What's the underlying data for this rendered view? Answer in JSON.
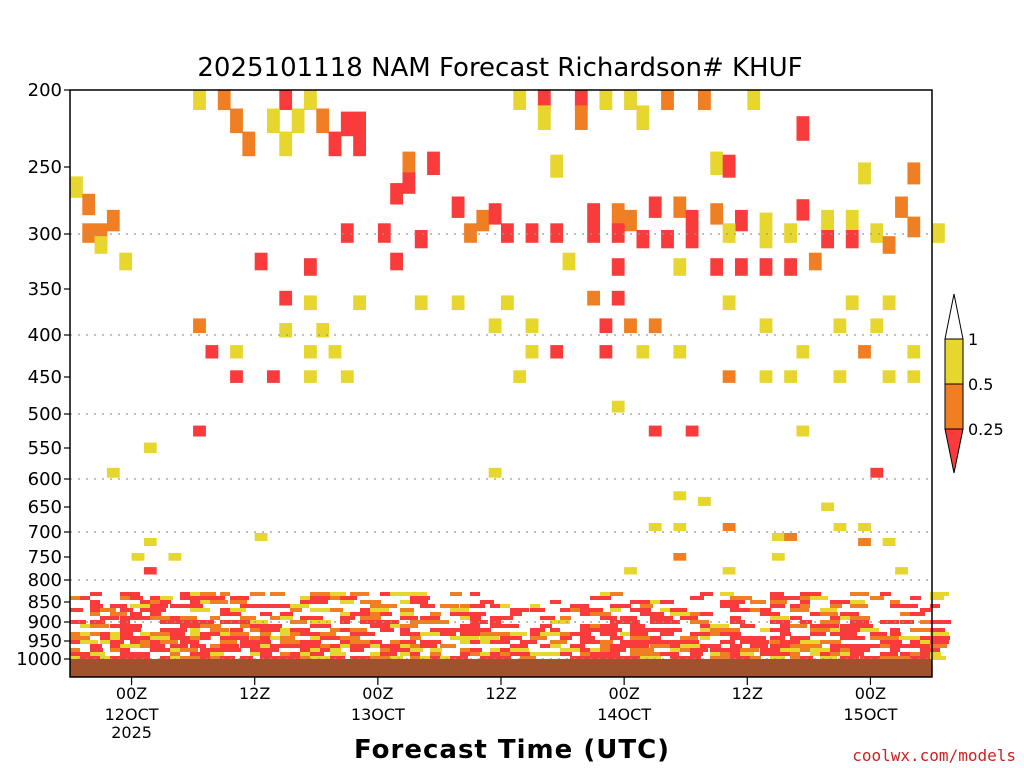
{
  "chart_data": {
    "type": "heatmap",
    "title": "2025101118 NAM Forecast Richardson# KHUF",
    "xlabel": "Forecast Time (UTC)",
    "ylabel": "",
    "y_scale": "reversed pressure (hPa)",
    "y_range": [
      1000,
      200
    ],
    "y_ticks": [
      "200",
      "250",
      "300",
      "350",
      "400",
      "450",
      "500",
      "550",
      "600",
      "650",
      "700",
      "750",
      "800",
      "850",
      "900",
      "950",
      "1000"
    ],
    "gridlines_at": [
      300,
      400,
      500,
      600,
      700,
      800,
      900,
      1000
    ],
    "x_range_hours": [
      0,
      84
    ],
    "x_ticks": [
      {
        "label": "00Z",
        "date": "12OCT",
        "year": "2025"
      },
      {
        "label": "12Z",
        "date": "",
        "year": ""
      },
      {
        "label": "00Z",
        "date": "13OCT",
        "year": ""
      },
      {
        "label": "12Z",
        "date": "",
        "year": ""
      },
      {
        "label": "00Z",
        "date": "14OCT",
        "year": ""
      },
      {
        "label": "12Z",
        "date": "",
        "year": ""
      },
      {
        "label": "00Z",
        "date": "15OCT",
        "year": ""
      }
    ],
    "legend": {
      "placement": "right",
      "levels": [
        "1",
        "0.5",
        "0.25"
      ],
      "classes": [
        {
          "range": "> 1",
          "color": "#ffffff"
        },
        {
          "range": "0.5 - 1",
          "color": "#e6d62e"
        },
        {
          "range": "0.25 - 0.5",
          "color": "#ef7f22"
        },
        {
          "range": "< 0.25",
          "color": "#f93b3b"
        }
      ]
    },
    "ground_color": "#a0522d",
    "cells": [
      [
        10,
        205,
        1,
        "y"
      ],
      [
        12,
        205,
        1,
        "o"
      ],
      [
        17,
        205,
        1,
        "r"
      ],
      [
        19,
        205,
        1,
        "y"
      ],
      [
        36,
        205,
        1,
        "y"
      ],
      [
        38,
        205,
        1,
        "r"
      ],
      [
        41,
        205,
        1,
        "r"
      ],
      [
        43,
        205,
        1,
        "y"
      ],
      [
        45,
        205,
        1,
        "y"
      ],
      [
        48,
        205,
        1,
        "o"
      ],
      [
        51,
        205,
        1,
        "o"
      ],
      [
        55,
        205,
        1,
        "y"
      ],
      [
        13,
        220,
        1,
        "o"
      ],
      [
        16,
        220,
        1,
        "y"
      ],
      [
        18,
        220,
        1,
        "y"
      ],
      [
        20,
        220,
        1,
        "o"
      ],
      [
        22,
        222,
        2,
        "r"
      ],
      [
        38,
        218,
        1,
        "y"
      ],
      [
        41,
        218,
        1,
        "o"
      ],
      [
        46,
        218,
        1,
        "y"
      ],
      [
        59,
        225,
        1,
        "r"
      ],
      [
        14,
        235,
        1,
        "o"
      ],
      [
        17,
        235,
        1,
        "y"
      ],
      [
        21,
        235,
        1,
        "r"
      ],
      [
        23,
        235,
        1,
        "r"
      ],
      [
        27,
        248,
        1,
        "o"
      ],
      [
        29,
        248,
        1,
        "r"
      ],
      [
        27,
        262,
        1,
        "r"
      ],
      [
        39,
        250,
        1,
        "y"
      ],
      [
        52,
        248,
        1,
        "y"
      ],
      [
        53,
        250,
        1,
        "r"
      ],
      [
        64,
        255,
        1,
        "y"
      ],
      [
        68,
        255,
        1,
        "o"
      ],
      [
        0,
        265,
        1,
        "y"
      ],
      [
        1,
        278,
        1,
        "o"
      ],
      [
        3,
        290,
        1,
        "o"
      ],
      [
        1,
        300,
        2,
        "o"
      ],
      [
        2,
        310,
        1,
        "y"
      ],
      [
        4,
        325,
        1,
        "y"
      ],
      [
        26,
        270,
        1,
        "r"
      ],
      [
        31,
        280,
        1,
        "r"
      ],
      [
        33,
        290,
        1,
        "o"
      ],
      [
        34,
        285,
        1,
        "r"
      ],
      [
        42,
        285,
        1,
        "r"
      ],
      [
        44,
        285,
        1,
        "o"
      ],
      [
        45,
        290,
        1,
        "o"
      ],
      [
        47,
        280,
        1,
        "r"
      ],
      [
        49,
        280,
        1,
        "o"
      ],
      [
        50,
        290,
        1,
        "r"
      ],
      [
        52,
        285,
        1,
        "o"
      ],
      [
        54,
        290,
        1,
        "r"
      ],
      [
        56,
        292,
        1,
        "y"
      ],
      [
        59,
        282,
        1,
        "r"
      ],
      [
        61,
        290,
        1,
        "y"
      ],
      [
        63,
        290,
        1,
        "y"
      ],
      [
        67,
        280,
        1,
        "o"
      ],
      [
        68,
        295,
        1,
        "o"
      ],
      [
        22,
        300,
        1,
        "r"
      ],
      [
        25,
        300,
        1,
        "r"
      ],
      [
        28,
        305,
        1,
        "r"
      ],
      [
        32,
        300,
        1,
        "o"
      ],
      [
        35,
        300,
        1,
        "r"
      ],
      [
        37,
        300,
        1,
        "r"
      ],
      [
        39,
        300,
        1,
        "r"
      ],
      [
        42,
        300,
        1,
        "r"
      ],
      [
        44,
        300,
        1,
        "r"
      ],
      [
        46,
        305,
        1,
        "r"
      ],
      [
        48,
        305,
        1,
        "r"
      ],
      [
        50,
        305,
        1,
        "r"
      ],
      [
        53,
        300,
        1,
        "y"
      ],
      [
        56,
        305,
        1,
        "y"
      ],
      [
        58,
        300,
        1,
        "y"
      ],
      [
        61,
        305,
        1,
        "r"
      ],
      [
        63,
        305,
        1,
        "r"
      ],
      [
        65,
        300,
        1,
        "y"
      ],
      [
        66,
        310,
        1,
        "o"
      ],
      [
        70,
        300,
        1,
        "y"
      ],
      [
        15,
        325,
        1,
        "r"
      ],
      [
        19,
        330,
        1,
        "r"
      ],
      [
        26,
        325,
        1,
        "r"
      ],
      [
        40,
        325,
        1,
        "y"
      ],
      [
        44,
        330,
        1,
        "r"
      ],
      [
        49,
        330,
        1,
        "y"
      ],
      [
        52,
        330,
        1,
        "r"
      ],
      [
        54,
        330,
        1,
        "r"
      ],
      [
        56,
        330,
        1,
        "r"
      ],
      [
        58,
        330,
        1,
        "r"
      ],
      [
        60,
        325,
        1,
        "o"
      ],
      [
        17,
        360,
        1,
        "r"
      ],
      [
        19,
        365,
        1,
        "y"
      ],
      [
        23,
        365,
        1,
        "y"
      ],
      [
        28,
        365,
        1,
        "y"
      ],
      [
        31,
        365,
        1,
        "y"
      ],
      [
        35,
        365,
        1,
        "y"
      ],
      [
        42,
        360,
        1,
        "o"
      ],
      [
        44,
        360,
        1,
        "r"
      ],
      [
        53,
        365,
        1,
        "y"
      ],
      [
        63,
        365,
        1,
        "y"
      ],
      [
        66,
        365,
        1,
        "y"
      ],
      [
        10,
        390,
        1,
        "o"
      ],
      [
        17,
        395,
        1,
        "y"
      ],
      [
        20,
        395,
        1,
        "y"
      ],
      [
        34,
        390,
        1,
        "y"
      ],
      [
        37,
        390,
        1,
        "y"
      ],
      [
        43,
        390,
        1,
        "r"
      ],
      [
        45,
        390,
        1,
        "o"
      ],
      [
        47,
        390,
        1,
        "o"
      ],
      [
        56,
        390,
        1,
        "y"
      ],
      [
        62,
        390,
        1,
        "y"
      ],
      [
        65,
        390,
        1,
        "y"
      ],
      [
        11,
        420,
        1,
        "r"
      ],
      [
        13,
        420,
        1,
        "y"
      ],
      [
        19,
        420,
        1,
        "y"
      ],
      [
        21,
        420,
        1,
        "y"
      ],
      [
        37,
        420,
        1,
        "y"
      ],
      [
        39,
        420,
        1,
        "r"
      ],
      [
        43,
        420,
        1,
        "r"
      ],
      [
        46,
        420,
        1,
        "y"
      ],
      [
        49,
        420,
        1,
        "y"
      ],
      [
        59,
        420,
        1,
        "y"
      ],
      [
        64,
        420,
        1,
        "o"
      ],
      [
        68,
        420,
        1,
        "y"
      ],
      [
        13,
        450,
        1,
        "r"
      ],
      [
        16,
        450,
        1,
        "r"
      ],
      [
        19,
        450,
        1,
        "y"
      ],
      [
        22,
        450,
        1,
        "y"
      ],
      [
        36,
        450,
        1,
        "y"
      ],
      [
        53,
        450,
        1,
        "o"
      ],
      [
        56,
        450,
        1,
        "y"
      ],
      [
        58,
        450,
        1,
        "y"
      ],
      [
        62,
        450,
        1,
        "y"
      ],
      [
        66,
        450,
        1,
        "y"
      ],
      [
        68,
        450,
        1,
        "y"
      ],
      [
        44,
        490,
        1,
        "y"
      ],
      [
        10,
        525,
        1,
        "r"
      ],
      [
        6,
        550,
        1,
        "y"
      ],
      [
        47,
        525,
        1,
        "r"
      ],
      [
        50,
        525,
        1,
        "r"
      ],
      [
        59,
        525,
        1,
        "y"
      ],
      [
        3,
        590,
        1,
        "y"
      ],
      [
        34,
        590,
        1,
        "y"
      ],
      [
        65,
        590,
        1,
        "r"
      ],
      [
        49,
        630,
        1,
        "y"
      ],
      [
        51,
        640,
        1,
        "y"
      ],
      [
        61,
        650,
        1,
        "y"
      ],
      [
        47,
        690,
        1,
        "y"
      ],
      [
        49,
        690,
        1,
        "y"
      ],
      [
        53,
        690,
        1,
        "o"
      ],
      [
        62,
        690,
        1,
        "y"
      ],
      [
        64,
        690,
        1,
        "y"
      ],
      [
        15,
        710,
        1,
        "y"
      ],
      [
        6,
        720,
        1,
        "y"
      ],
      [
        57,
        710,
        1,
        "y"
      ],
      [
        58,
        710,
        1,
        "o"
      ],
      [
        64,
        720,
        1,
        "o"
      ],
      [
        66,
        720,
        1,
        "y"
      ],
      [
        5,
        750,
        1,
        "y"
      ],
      [
        8,
        750,
        1,
        "y"
      ],
      [
        49,
        750,
        1,
        "o"
      ],
      [
        57,
        750,
        1,
        "y"
      ],
      [
        6,
        780,
        1,
        "r"
      ],
      [
        45,
        780,
        1,
        "y"
      ],
      [
        53,
        780,
        1,
        "y"
      ],
      [
        67,
        780,
        1,
        "y"
      ]
    ],
    "pbl_layers": [
      {
        "p_top": 825,
        "p_bot": 1000,
        "density": "high"
      }
    ]
  },
  "credit": "coolwx.com/models"
}
